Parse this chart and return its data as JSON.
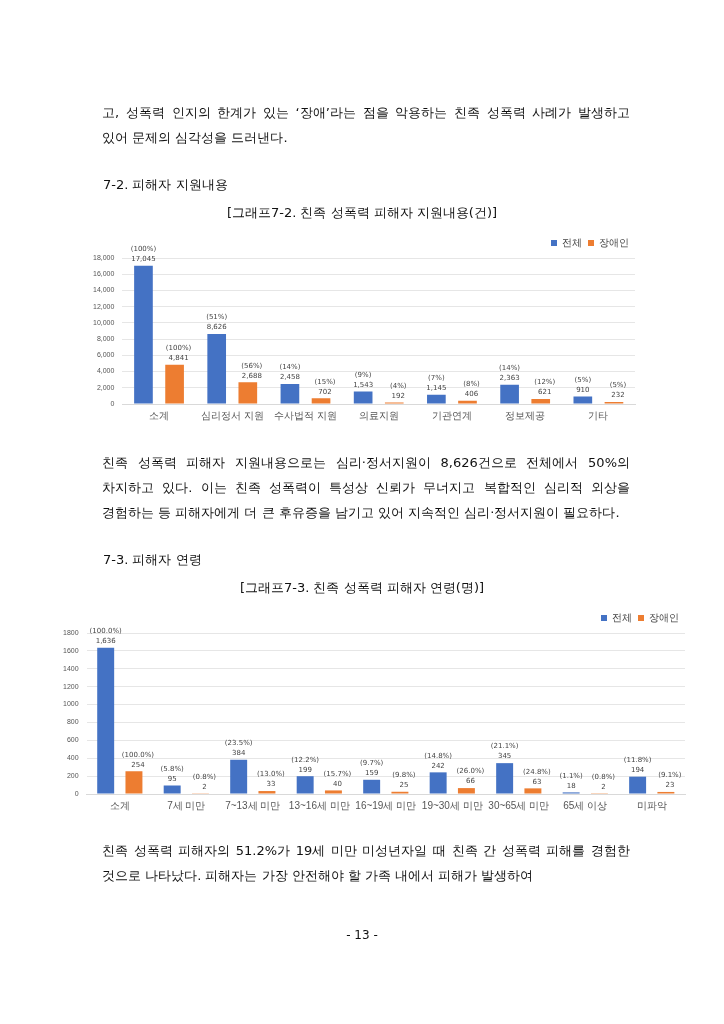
{
  "chart_data": [
    {
      "type": "bar",
      "subtitle": "7-2. 피해자 지원내용",
      "title": "[그래프7-2. 친족 성폭력 피해자 지원내용(건)]",
      "annotations": [
        "고, 성폭력 인지의 한계가 있는 ‘장애’라는 점을 악용하는 친족 성폭력 사례가 발생하고 있어 문제의 심각성을 드러낸다."
      ],
      "categories": [
        "소계",
        "심리정서 지원",
        "수사법적 지원",
        "의료지원",
        "기관연계",
        "정보제공",
        "기타"
      ],
      "series": [
        {
          "name": "전체",
          "color": "#4472c4",
          "values": [
            17045,
            8626,
            2458,
            1543,
            1145,
            2363,
            910
          ],
          "value_labels": [
            "(100%)\n17,045",
            "(51%)\n8,626",
            "(14%)\n2,458",
            "(9%)\n1,543",
            "(7%)\n1,145",
            "(14%)\n2,363",
            "(5%)\n910"
          ]
        },
        {
          "name": "장애인",
          "color": "#ed7d31",
          "values": [
            4841,
            2688,
            702,
            192,
            406,
            621,
            232
          ],
          "value_labels": [
            "(100%)\n4,841",
            "(56%)\n2,688",
            "(15%)\n702",
            "(4%)\n192",
            "(8%)\n406",
            "(12%)\n621",
            "(5%)\n232"
          ]
        }
      ],
      "ylim": [
        0,
        18000
      ],
      "yticks": [
        0,
        {
          "value": 2000,
          "label": "2,000"
        },
        {
          "value": 4000,
          "label": "4,000"
        },
        {
          "value": 6000,
          "label": "6,000"
        },
        {
          "value": 8000,
          "label": "8,000"
        },
        {
          "value": 10000,
          "label": "10,000"
        },
        {
          "value": 12000,
          "label": "12,000"
        },
        {
          "value": 14000,
          "label": "14,000"
        },
        {
          "value": 16000,
          "label": "16,000"
        },
        {
          "value": 18000,
          "label": "18,000"
        }
      ],
      "grid": "y",
      "legend": "top right"
    },
    {
      "type": "bar",
      "subtitle": "7-3. 피해자 연령",
      "title": "[그래프7-3. 친족 성폭력 피해자 연령(명)]",
      "annotations": [
        "친족 성폭력 피해자 지원내용으로는 심리·정서지원이 8,626건으로 전체에서 50%의 차지하고 있다. 이는 친족 성폭력이 특성상 신뢰가 무너지고 복합적인 심리적 외상을 경험하는 등 피해자에게 더 큰 후유증을 남기고 있어 지속적인 심리·정서지원이 필요하다.",
        "친족 성폭력 피해자의 51.2%가 19세 미만 미성년자일 때 친족 간 성폭력 피해를 경험한 것으로 나타났다. 피해자는 가장 안전해야 할 가족 내에서 피해가 발생하여",
        "- 13 -"
      ],
      "categories": [
        "소계",
        "7세 미만",
        "7~13세 미만",
        "13~16세 미만",
        "16~19세 미만",
        "19~30세 미만",
        "30~65세 미만",
        "65세 이상",
        "미파악"
      ],
      "series": [
        {
          "name": "전체",
          "color": "#4472c4",
          "values": [
            1636,
            95,
            384,
            199,
            159,
            242,
            345,
            18,
            194
          ],
          "value_labels": [
            "(100.0%)\n1,636",
            "(5.8%)\n95",
            "(23.5%)\n384",
            "(12.2%)\n199",
            "(9.7%)\n159",
            "(14.8%)\n242",
            "(21.1%)\n345",
            "(1.1%)\n18",
            "(11.8%)\n194"
          ]
        },
        {
          "name": "장애인",
          "color": "#ed7d31",
          "values": [
            254,
            2,
            33,
            40,
            25,
            66,
            63,
            2,
            23
          ],
          "value_labels": [
            "(100.0%)\n254",
            "(0.8%)\n2",
            "(13.0%)\n33",
            "(15.7%)\n40",
            "(9.8%)\n25",
            "(26.0%)\n66",
            "(24.8%)\n63",
            "(0.8%)\n2",
            "(9.1%)\n23"
          ]
        }
      ],
      "ylim": [
        0,
        1800
      ],
      "yticks": [
        0,
        200,
        400,
        600,
        800,
        1000,
        1200,
        1400,
        1600,
        1800
      ],
      "grid": "y",
      "legend": "top right"
    }
  ]
}
